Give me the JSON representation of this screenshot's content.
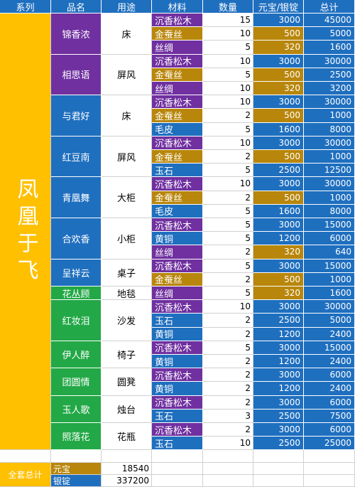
{
  "colors": {
    "header": "#1f6fbf",
    "series": "#ffc000",
    "purple": "#7030a0",
    "blue": "#1f6fbf",
    "green": "#22a846",
    "gold": "#b8860b",
    "total": "#1f6fbf"
  },
  "headers": [
    "系列",
    "品名",
    "用途",
    "材料",
    "数量",
    "元宝/银锭",
    "总计"
  ],
  "series": "凤凰于飞",
  "groups": [
    {
      "name": "锦香浓",
      "use": "床",
      "color": "purple",
      "rows": [
        {
          "mat": "沉香松木",
          "qty": "15",
          "price": "3000",
          "total": "45000"
        },
        {
          "mat": "金蚕丝",
          "qty": "10",
          "price": "500",
          "total": "5000"
        },
        {
          "mat": "丝绸",
          "qty": "5",
          "price": "320",
          "total": "1600"
        }
      ]
    },
    {
      "name": "相思语",
      "use": "屏风",
      "color": "purple",
      "rows": [
        {
          "mat": "沉香松木",
          "qty": "10",
          "price": "3000",
          "total": "30000"
        },
        {
          "mat": "金蚕丝",
          "qty": "5",
          "price": "500",
          "total": "2500"
        },
        {
          "mat": "丝绸",
          "qty": "10",
          "price": "320",
          "total": "3200"
        }
      ]
    },
    {
      "name": "与君好",
      "use": "床",
      "color": "blue",
      "rows": [
        {
          "mat": "沉香松木",
          "qty": "10",
          "price": "3000",
          "total": "30000"
        },
        {
          "mat": "金蚕丝",
          "qty": "2",
          "price": "500",
          "total": "1000"
        },
        {
          "mat": "毛皮",
          "qty": "5",
          "price": "1600",
          "total": "8000"
        }
      ]
    },
    {
      "name": "红豆南",
      "use": "屏风",
      "color": "blue",
      "rows": [
        {
          "mat": "沉香松木",
          "qty": "10",
          "price": "3000",
          "total": "30000"
        },
        {
          "mat": "金蚕丝",
          "qty": "2",
          "price": "500",
          "total": "1000"
        },
        {
          "mat": "玉石",
          "qty": "5",
          "price": "2500",
          "total": "12500"
        }
      ]
    },
    {
      "name": "青凰舞",
      "use": "大柜",
      "color": "blue",
      "rows": [
        {
          "mat": "沉香松木",
          "qty": "10",
          "price": "3000",
          "total": "30000"
        },
        {
          "mat": "金蚕丝",
          "qty": "2",
          "price": "500",
          "total": "1000"
        },
        {
          "mat": "毛皮",
          "qty": "5",
          "price": "1600",
          "total": "8000"
        }
      ]
    },
    {
      "name": "合欢香",
      "use": "小柜",
      "color": "blue",
      "rows": [
        {
          "mat": "沉香松木",
          "qty": "5",
          "price": "3000",
          "total": "15000"
        },
        {
          "mat": "黄铜",
          "qty": "5",
          "price": "1200",
          "total": "6000"
        },
        {
          "mat": "丝绸",
          "qty": "2",
          "price": "320",
          "total": "640"
        }
      ]
    },
    {
      "name": "呈祥云",
      "use": "桌子",
      "color": "blue",
      "rows": [
        {
          "mat": "沉香松木",
          "qty": "5",
          "price": "3000",
          "total": "15000"
        },
        {
          "mat": "金蚕丝",
          "qty": "2",
          "price": "500",
          "total": "1000"
        }
      ]
    },
    {
      "name": "花丛顾",
      "use": "地毯",
      "color": "green",
      "rows": [
        {
          "mat": "丝绸",
          "qty": "5",
          "price": "320",
          "total": "1600"
        }
      ]
    },
    {
      "name": "红妆泪",
      "use": "沙发",
      "color": "green",
      "rows": [
        {
          "mat": "沉香松木",
          "qty": "10",
          "price": "3000",
          "total": "30000"
        },
        {
          "mat": "玉石",
          "qty": "2",
          "price": "2500",
          "total": "5000"
        },
        {
          "mat": "黄铜",
          "qty": "2",
          "price": "1200",
          "total": "2400"
        }
      ]
    },
    {
      "name": "伊人醉",
      "use": "椅子",
      "color": "green",
      "rows": [
        {
          "mat": "沉香松木",
          "qty": "5",
          "price": "3000",
          "total": "15000"
        },
        {
          "mat": "黄铜",
          "qty": "2",
          "price": "1200",
          "total": "2400"
        }
      ]
    },
    {
      "name": "团圆情",
      "use": "圆凳",
      "color": "green",
      "rows": [
        {
          "mat": "沉香松木",
          "qty": "2",
          "price": "3000",
          "total": "6000"
        },
        {
          "mat": "黄铜",
          "qty": "2",
          "price": "1200",
          "total": "2400"
        }
      ]
    },
    {
      "name": "玉人歌",
      "use": "烛台",
      "color": "green",
      "rows": [
        {
          "mat": "沉香松木",
          "qty": "2",
          "price": "3000",
          "total": "6000"
        },
        {
          "mat": "玉石",
          "qty": "3",
          "price": "2500",
          "total": "7500"
        }
      ]
    },
    {
      "name": "照落花",
      "use": "花瓶",
      "color": "green",
      "rows": [
        {
          "mat": "沉香松木",
          "qty": "2",
          "price": "3000",
          "total": "6000"
        },
        {
          "mat": "玉石",
          "qty": "10",
          "price": "2500",
          "total": "25000"
        }
      ]
    }
  ],
  "material_colors": {
    "沉香松木": "purple",
    "金蚕丝": "gold",
    "丝绸": "purple",
    "毛皮": "blue",
    "玉石": "blue",
    "黄铜": "blue"
  },
  "price_colors": {
    "3000": "blue",
    "500": "gold",
    "320": "gold",
    "1600": "blue",
    "2500": "blue",
    "1200": "blue"
  },
  "summary": {
    "label": "全套总计",
    "rows": [
      {
        "currency": "元宝",
        "value": "18540",
        "color": "gold"
      },
      {
        "currency": "银锭",
        "value": "337200",
        "color": "blue"
      }
    ]
  }
}
